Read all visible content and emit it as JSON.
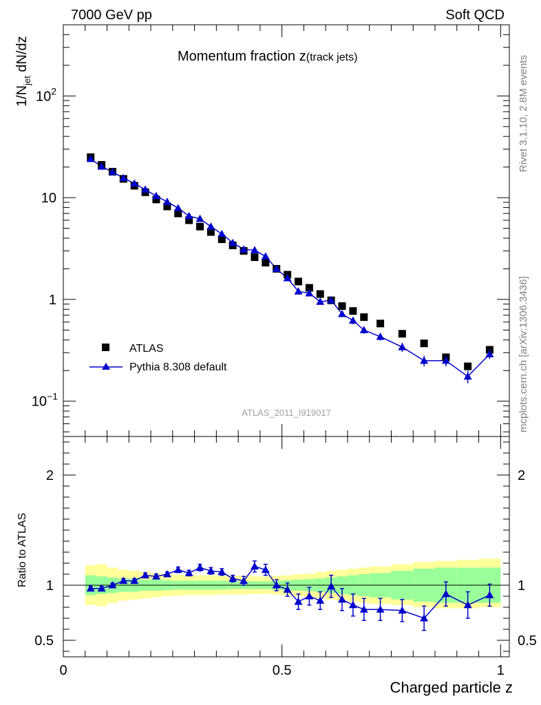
{
  "header": {
    "left": "7000 GeV pp",
    "right": "Soft QCD",
    "side_right_top": "Rivet 3.1.10,  2.8M events",
    "side_right_bottom": "mcplots.cern.ch [arXiv:1306.3436]"
  },
  "colors": {
    "data": "#000000",
    "mc": "#0000cc",
    "band_inner": "#99ff99",
    "band_outer": "#ffff99"
  },
  "chart_data": [
    {
      "type": "scatter",
      "panel": "main",
      "title": "Momentum fraction z",
      "title_sub": "(track jets)",
      "ylabel": "1/N",
      "ylabel_sub": "jet",
      "ylabel_tail": " dN/dz",
      "xlabel": "",
      "watermark": "ATLAS_2011_I919017",
      "yscale": "log",
      "xlim": [
        0,
        1.02
      ],
      "ylim": [
        0.045,
        500
      ],
      "ytick_labels": [
        {
          "value": 0.1,
          "base": "10",
          "exp": "−1"
        },
        {
          "value": 1,
          "base": "1",
          "exp": ""
        },
        {
          "value": 10,
          "base": "10",
          "exp": ""
        },
        {
          "value": 100,
          "base": "10",
          "exp": "2"
        }
      ],
      "legend_position": "lower-left",
      "series": [
        {
          "name": "ATLAS",
          "marker": "square",
          "x": [
            0.0625,
            0.0875,
            0.1125,
            0.1375,
            0.1625,
            0.1875,
            0.2125,
            0.2375,
            0.2625,
            0.2875,
            0.3125,
            0.3375,
            0.3625,
            0.3875,
            0.4125,
            0.4375,
            0.4625,
            0.4875,
            0.5125,
            0.5375,
            0.5625,
            0.5875,
            0.6125,
            0.6375,
            0.6625,
            0.6875,
            0.725,
            0.775,
            0.825,
            0.875,
            0.925,
            0.975
          ],
          "y": [
            25.0,
            21.0,
            18.0,
            15.3,
            13.1,
            11.3,
            9.6,
            8.2,
            7.0,
            6.0,
            5.2,
            4.6,
            3.9,
            3.4,
            3.0,
            2.6,
            2.3,
            2.0,
            1.75,
            1.5,
            1.3,
            1.13,
            0.98,
            0.86,
            0.77,
            0.67,
            0.58,
            0.46,
            0.37,
            0.27,
            0.22,
            0.32
          ]
        },
        {
          "name": "Pythia 8.308 default",
          "marker": "triangle",
          "x": [
            0.0625,
            0.0875,
            0.1125,
            0.1375,
            0.1625,
            0.1875,
            0.2125,
            0.2375,
            0.2625,
            0.2875,
            0.3125,
            0.3375,
            0.3625,
            0.3875,
            0.4125,
            0.4375,
            0.4625,
            0.4875,
            0.5125,
            0.5375,
            0.5625,
            0.5875,
            0.6125,
            0.6375,
            0.6625,
            0.6875,
            0.725,
            0.775,
            0.825,
            0.875,
            0.925,
            0.975
          ],
          "y": [
            24.0,
            20.2,
            17.9,
            15.6,
            13.8,
            12.0,
            10.4,
            9.1,
            7.9,
            6.6,
            6.2,
            5.2,
            4.4,
            3.6,
            3.1,
            3.05,
            2.65,
            2.0,
            1.62,
            1.2,
            1.15,
            0.95,
            0.98,
            0.72,
            0.62,
            0.5,
            0.43,
            0.34,
            0.25,
            0.25,
            0.175,
            0.29
          ],
          "yerr": [
            0.4,
            0.3,
            0.3,
            0.25,
            0.2,
            0.2,
            0.2,
            0.15,
            0.15,
            0.12,
            0.12,
            0.1,
            0.08,
            0.07,
            0.07,
            0.07,
            0.06,
            0.05,
            0.05,
            0.04,
            0.04,
            0.05,
            0.05,
            0.05,
            0.05,
            0.04,
            0.035,
            0.035,
            0.03,
            0.03,
            0.025,
            0.03
          ]
        }
      ]
    },
    {
      "type": "scatter",
      "panel": "ratio",
      "ylabel": "Ratio to ATLAS",
      "xlabel": "Charged particle z",
      "xlim": [
        0,
        1.02
      ],
      "ylim": [
        0.35,
        2.35
      ],
      "yticks": [
        0.5,
        1,
        2
      ],
      "ytick_labels": [
        "0.5",
        "1",
        "2"
      ],
      "xticks": [
        0,
        0.5,
        1
      ],
      "xtick_labels": [
        "0",
        "0.5",
        "1"
      ],
      "bands": {
        "x_edges": [
          0.05,
          0.075,
          0.1,
          0.125,
          0.15,
          0.175,
          0.2,
          0.225,
          0.25,
          0.275,
          0.3,
          0.325,
          0.35,
          0.375,
          0.4,
          0.425,
          0.45,
          0.475,
          0.5,
          0.525,
          0.55,
          0.575,
          0.6,
          0.625,
          0.65,
          0.675,
          0.7,
          0.75,
          0.8,
          0.85,
          0.9,
          0.95,
          1.0
        ],
        "inner_lo": [
          0.91,
          0.92,
          0.93,
          0.94,
          0.94,
          0.95,
          0.95,
          0.955,
          0.96,
          0.96,
          0.96,
          0.96,
          0.96,
          0.965,
          0.965,
          0.965,
          0.965,
          0.96,
          0.955,
          0.95,
          0.945,
          0.94,
          0.93,
          0.92,
          0.91,
          0.9,
          0.89,
          0.87,
          0.85,
          0.84,
          0.84,
          0.84
        ],
        "inner_hi": [
          1.09,
          1.08,
          1.07,
          1.06,
          1.06,
          1.05,
          1.05,
          1.045,
          1.04,
          1.04,
          1.04,
          1.04,
          1.04,
          1.035,
          1.035,
          1.035,
          1.035,
          1.04,
          1.045,
          1.05,
          1.055,
          1.06,
          1.07,
          1.08,
          1.09,
          1.1,
          1.11,
          1.13,
          1.15,
          1.16,
          1.16,
          1.16
        ],
        "outer_lo": [
          0.82,
          0.81,
          0.84,
          0.86,
          0.87,
          0.88,
          0.89,
          0.9,
          0.905,
          0.91,
          0.91,
          0.91,
          0.915,
          0.915,
          0.915,
          0.92,
          0.92,
          0.915,
          0.91,
          0.9,
          0.895,
          0.88,
          0.87,
          0.86,
          0.85,
          0.84,
          0.83,
          0.82,
          0.8,
          0.79,
          0.79,
          0.8
        ],
        "outer_hi": [
          1.18,
          1.19,
          1.16,
          1.14,
          1.13,
          1.12,
          1.11,
          1.1,
          1.095,
          1.09,
          1.09,
          1.09,
          1.085,
          1.085,
          1.085,
          1.08,
          1.08,
          1.085,
          1.09,
          1.1,
          1.105,
          1.12,
          1.13,
          1.14,
          1.15,
          1.16,
          1.17,
          1.19,
          1.21,
          1.22,
          1.23,
          1.24
        ]
      },
      "series": [
        {
          "name": "Pythia 8.308 default",
          "x": [
            0.0625,
            0.0875,
            0.1125,
            0.1375,
            0.1625,
            0.1875,
            0.2125,
            0.2375,
            0.2625,
            0.2875,
            0.3125,
            0.3375,
            0.3625,
            0.3875,
            0.4125,
            0.4375,
            0.4625,
            0.4875,
            0.5125,
            0.5375,
            0.5625,
            0.5875,
            0.6125,
            0.6375,
            0.6625,
            0.6875,
            0.725,
            0.775,
            0.825,
            0.875,
            0.925,
            0.975
          ],
          "y": [
            0.97,
            0.97,
            1.0,
            1.04,
            1.04,
            1.09,
            1.08,
            1.1,
            1.14,
            1.11,
            1.16,
            1.13,
            1.12,
            1.06,
            1.04,
            1.17,
            1.14,
            1.0,
            0.96,
            0.85,
            0.9,
            0.86,
            0.99,
            0.87,
            0.82,
            0.78,
            0.78,
            0.77,
            0.7,
            0.92,
            0.82,
            0.91
          ],
          "yerr": [
            0.02,
            0.02,
            0.02,
            0.02,
            0.02,
            0.02,
            0.02,
            0.02,
            0.025,
            0.025,
            0.03,
            0.03,
            0.03,
            0.03,
            0.04,
            0.05,
            0.05,
            0.05,
            0.06,
            0.07,
            0.08,
            0.08,
            0.1,
            0.1,
            0.1,
            0.1,
            0.1,
            0.1,
            0.11,
            0.11,
            0.12,
            0.1
          ]
        }
      ]
    }
  ]
}
